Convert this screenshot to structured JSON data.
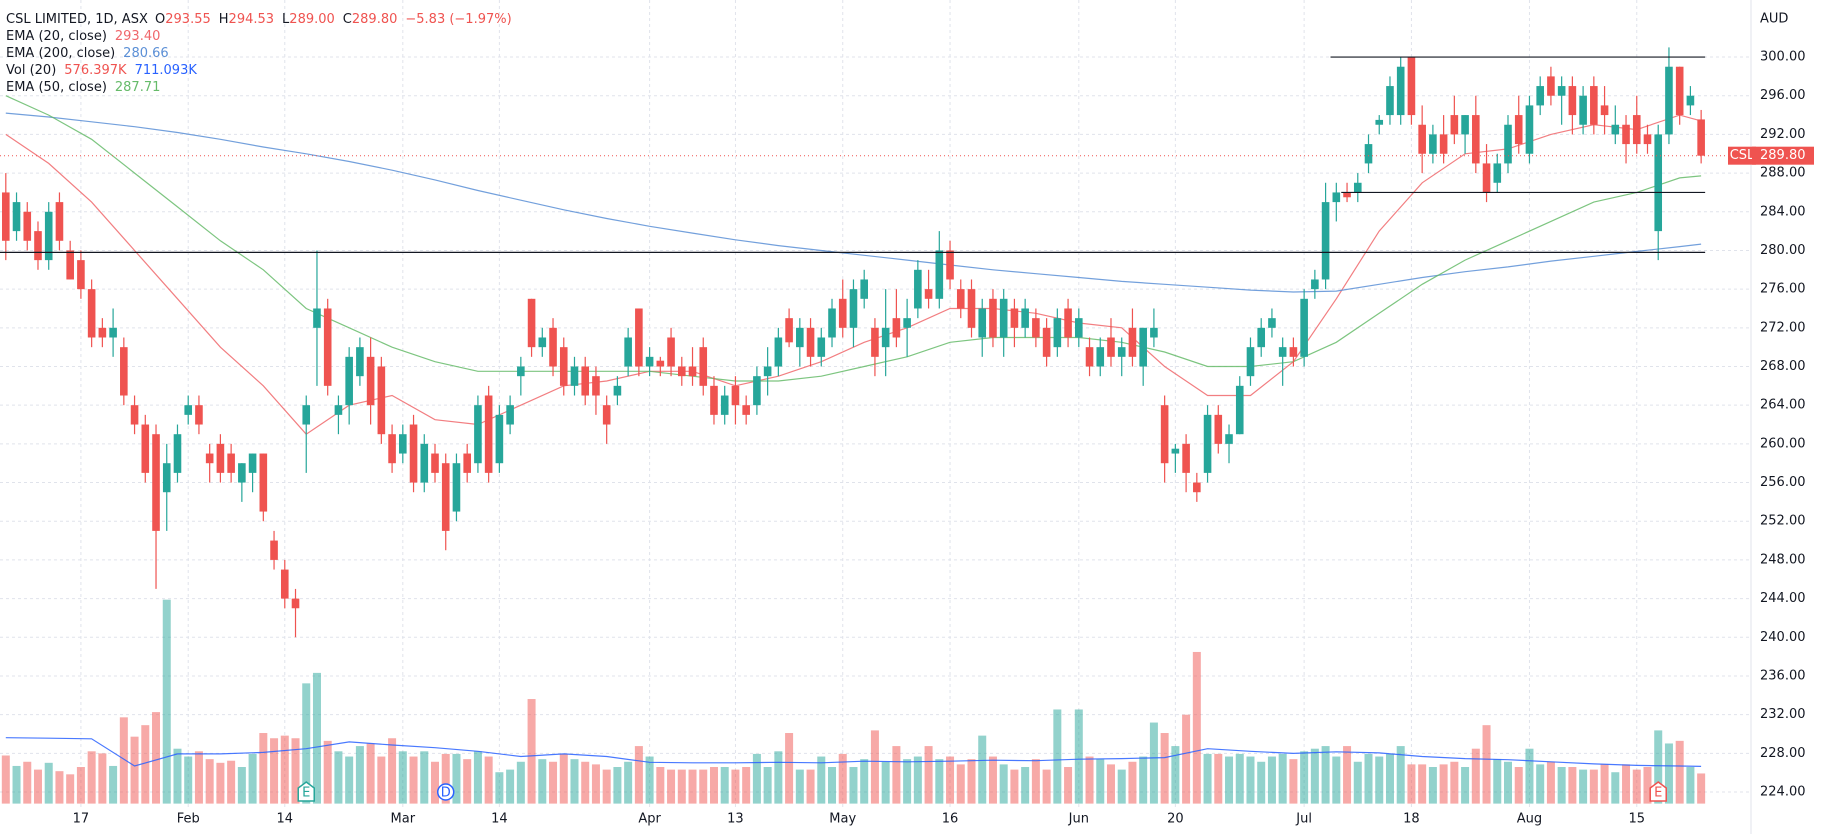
{
  "chart_data": {
    "type": "candlestick",
    "header": {
      "symbol": "CSL LIMITED, 1D, ASX",
      "fields": [
        {
          "key": "O",
          "value": "293.55"
        },
        {
          "key": "H",
          "value": "294.53"
        },
        {
          "key": "L",
          "value": "289.00"
        },
        {
          "key": "C",
          "value": "289.80"
        }
      ],
      "change": "−5.83 (−1.97%)"
    },
    "currency": "AUD",
    "last_tag": {
      "symbol": "CSL",
      "price": "289.80"
    },
    "volume_label": "576.397K",
    "colors": {
      "up": "#26a69a",
      "down": "#ef5350"
    },
    "categories": [
      null,
      null,
      null,
      null,
      null,
      null,
      null,
      "17",
      null,
      null,
      null,
      null,
      null,
      null,
      null,
      null,
      null,
      "Feb",
      null,
      null,
      null,
      null,
      null,
      null,
      null,
      null,
      "14",
      null,
      null,
      null,
      null,
      null,
      null,
      null,
      null,
      null,
      null,
      "Mar",
      null,
      null,
      null,
      null,
      null,
      null,
      null,
      null,
      "14",
      null,
      null,
      null,
      null,
      null,
      null,
      null,
      null,
      null,
      null,
      null,
      null,
      null,
      "Apr",
      null,
      null,
      null,
      null,
      null,
      null,
      null,
      "13",
      null,
      null,
      null,
      null,
      null,
      null,
      null,
      null,
      null,
      "May",
      null,
      null,
      null,
      null,
      null,
      null,
      null,
      null,
      null,
      "16",
      null,
      null,
      null,
      null,
      null,
      null,
      null,
      null,
      null,
      null,
      null,
      "Jun",
      null,
      null,
      null,
      null,
      null,
      null,
      null,
      null,
      "20",
      null,
      null,
      null,
      null,
      null,
      null,
      null,
      null,
      null,
      null,
      null,
      "Jul",
      null,
      null,
      null,
      null,
      null,
      null,
      null,
      null,
      null,
      "18",
      null,
      null,
      null,
      null,
      null,
      null,
      null,
      null,
      null,
      null,
      "Aug",
      null,
      null,
      null,
      null,
      null,
      null,
      null,
      null,
      null,
      "15",
      null,
      null,
      null,
      null,
      null,
      null
    ],
    "open": [
      286,
      282,
      284,
      282,
      279,
      285,
      280,
      279,
      276,
      272,
      271,
      270,
      264,
      262,
      261,
      255,
      257,
      263,
      264,
      259,
      260,
      259,
      256,
      257,
      259,
      250,
      247,
      244,
      262,
      272,
      274,
      263,
      264,
      267,
      269,
      268,
      261,
      259,
      262,
      256,
      259,
      258,
      253,
      259,
      258,
      265,
      258,
      262,
      267,
      275,
      270,
      272,
      270,
      266,
      268,
      267,
      264,
      265,
      268,
      274,
      268,
      268.6,
      271,
      268,
      268,
      270,
      266,
      263,
      266,
      264,
      264,
      267,
      268,
      273,
      270,
      272,
      269,
      271,
      275,
      272,
      275,
      272,
      270,
      273,
      272,
      274,
      276,
      275,
      280,
      276,
      276,
      271,
      275,
      271,
      274,
      272,
      273,
      272,
      270,
      274,
      271,
      270,
      268,
      271,
      269,
      272,
      268,
      271,
      264,
      259,
      260,
      256,
      257,
      263,
      260,
      261,
      267,
      270,
      272,
      269,
      270,
      269,
      276,
      277,
      285,
      286,
      286,
      289,
      293,
      294,
      294,
      300,
      293,
      290,
      292,
      294,
      292,
      294,
      289,
      287,
      289,
      294,
      290,
      295,
      298,
      296,
      297,
      293,
      297,
      295,
      292,
      293,
      294,
      292,
      282,
      292,
      299,
      295,
      293.55
    ],
    "high": [
      288,
      286,
      285,
      283,
      285,
      286,
      281,
      280,
      277,
      273,
      274,
      271,
      265,
      263,
      262,
      260,
      262,
      265,
      265,
      260,
      261,
      260,
      258,
      259,
      259,
      251,
      248,
      245,
      265,
      280,
      275,
      265,
      270,
      271,
      271,
      269,
      262,
      262,
      263,
      261,
      260,
      259,
      259,
      260,
      265,
      266,
      264,
      265,
      269,
      275,
      272,
      273,
      271,
      269,
      269,
      268,
      265,
      267,
      272,
      274,
      270,
      269,
      272,
      269,
      270,
      271,
      267,
      266,
      267,
      265,
      268,
      270,
      272,
      274,
      273,
      273,
      272,
      275,
      277,
      277,
      278,
      273,
      276,
      276,
      275,
      279,
      278,
      282,
      281,
      277,
      277,
      275,
      276,
      276,
      275,
      275,
      274,
      273,
      274,
      275,
      274,
      271,
      271,
      273,
      271,
      274,
      272,
      274,
      265,
      260,
      261,
      257,
      264,
      264,
      262,
      267,
      271,
      273,
      274,
      271,
      271,
      276,
      278,
      287,
      287,
      287,
      288,
      292,
      294,
      298,
      300,
      300,
      295,
      293,
      294,
      296,
      294,
      296,
      291,
      290,
      294,
      296,
      296,
      298,
      299,
      298,
      298,
      297,
      298,
      297,
      295,
      294,
      296,
      293,
      293,
      301,
      299,
      297,
      294.53
    ],
    "low": [
      279,
      281,
      280,
      278,
      278,
      280,
      277,
      275,
      270,
      270,
      269,
      264,
      261,
      256,
      245,
      251,
      256,
      262,
      261,
      256,
      256,
      256,
      254,
      255,
      252,
      247,
      243,
      240,
      257,
      266,
      265,
      261,
      262,
      266,
      262,
      260,
      257,
      258,
      255,
      255,
      256,
      249,
      252,
      256,
      257,
      256,
      257,
      261,
      265,
      269,
      269,
      267,
      265,
      265,
      264,
      263,
      260,
      264,
      267,
      267,
      267,
      267,
      267,
      266,
      266,
      265,
      262,
      262,
      262,
      262,
      263,
      265,
      267,
      270,
      268,
      268,
      268,
      270,
      271,
      270,
      274,
      267,
      267,
      270,
      269,
      273,
      274,
      274,
      276,
      273,
      271,
      269,
      270,
      269,
      270,
      271,
      270,
      268,
      269,
      270,
      270,
      267,
      267,
      268,
      267,
      268,
      266,
      270,
      256,
      257,
      255,
      254,
      256,
      259,
      258,
      261,
      266,
      269,
      271,
      266,
      268,
      268,
      275,
      276,
      283,
      285,
      285,
      288,
      292,
      293,
      293,
      293,
      288,
      289,
      289,
      291,
      290,
      288,
      285,
      286,
      288,
      290,
      289,
      294,
      295,
      293,
      292,
      292,
      292,
      292,
      291,
      289,
      290,
      290,
      279,
      291,
      293,
      294,
      289
    ],
    "close": [
      281,
      285,
      281,
      279,
      284,
      281,
      277,
      276,
      271,
      271,
      272,
      265,
      262,
      257,
      251,
      258,
      261,
      264,
      262,
      258,
      257,
      257,
      258,
      259,
      253,
      248,
      244,
      243,
      264,
      274,
      266,
      264,
      269,
      270,
      264,
      261,
      258,
      261,
      256,
      260,
      257,
      251,
      258,
      257,
      264,
      257,
      263,
      264,
      268,
      270,
      271,
      268,
      266,
      268,
      265,
      265,
      262,
      266,
      271,
      268,
      269,
      268,
      268,
      267,
      267,
      266,
      263,
      265,
      264,
      263,
      267,
      268,
      271,
      270.5,
      272,
      269,
      271,
      274,
      272,
      276,
      277,
      269,
      272,
      271,
      273,
      278,
      275,
      280,
      277,
      274,
      272,
      274,
      271,
      275,
      272,
      274,
      271,
      269,
      273,
      271,
      273,
      268,
      270,
      269,
      270,
      269,
      272,
      272,
      258,
      259.5,
      257,
      255,
      263,
      260,
      261,
      266,
      270,
      272,
      273,
      270,
      269,
      275,
      277,
      285,
      286,
      285.5,
      287,
      291,
      293.5,
      297,
      299,
      294,
      290,
      292,
      290,
      292,
      294,
      289,
      286,
      289,
      293,
      291,
      295,
      297,
      296,
      297,
      294,
      296,
      293,
      294,
      293,
      291,
      291,
      291,
      292,
      299,
      294,
      296,
      289.8
    ],
    "volume": [
      920000,
      720000,
      800000,
      650000,
      780000,
      620000,
      560000,
      700000,
      1000000,
      960000,
      720000,
      1650000,
      1280000,
      1500000,
      1750000,
      3900000,
      1050000,
      900000,
      1000000,
      850000,
      780000,
      820000,
      700000,
      950000,
      1350000,
      1250000,
      1300000,
      1250000,
      2300000,
      2500000,
      1200000,
      1000000,
      900000,
      1100000,
      1150000,
      900000,
      1250000,
      1000000,
      900000,
      1000000,
      800000,
      950000,
      950000,
      850000,
      1000000,
      900000,
      600000,
      650000,
      800000,
      2000000,
      850000,
      800000,
      950000,
      850000,
      800000,
      750000,
      650000,
      700000,
      800000,
      1100000,
      900000,
      700000,
      650000,
      650000,
      650000,
      650000,
      700000,
      700000,
      650000,
      700000,
      950000,
      700000,
      1000000,
      1350000,
      650000,
      650000,
      900000,
      700000,
      950000,
      700000,
      850000,
      1400000,
      800000,
      1100000,
      850000,
      900000,
      1100000,
      850000,
      900000,
      750000,
      850000,
      1300000,
      900000,
      750000,
      650000,
      700000,
      850000,
      650000,
      1800000,
      700000,
      1800000,
      900000,
      850000,
      750000,
      650000,
      800000,
      900000,
      1550000,
      1350000,
      1100000,
      1700000,
      2900000,
      950000,
      950000,
      900000,
      950000,
      900000,
      800000,
      900000,
      950000,
      850000,
      1000000,
      1050000,
      1100000,
      900000,
      1100000,
      800000,
      950000,
      900000,
      950000,
      1100000,
      750000,
      750000,
      700000,
      750000,
      800000,
      700000,
      1050000,
      1500000,
      850000,
      800000,
      700000,
      1050000,
      750000,
      800000,
      700000,
      700000,
      650000,
      650000,
      750000,
      600000,
      750000,
      650000,
      700000,
      1400000,
      1150000,
      1200000,
      700000,
      576397
    ],
    "lines": [
      {
        "name": "EMA (20, close)",
        "label": "293.40",
        "color": "#f0676b",
        "x": [
          0,
          4,
          8,
          12,
          16,
          20,
          24,
          28,
          32,
          36,
          40,
          44,
          48,
          52,
          56,
          60,
          64,
          68,
          72,
          76,
          80,
          84,
          88,
          92,
          96,
          100,
          104,
          108,
          112,
          116,
          120,
          124,
          128,
          132,
          136,
          140,
          144,
          148,
          152,
          156,
          158
        ],
        "values": [
          292,
          289,
          285,
          280,
          275,
          270,
          266,
          261,
          264,
          265,
          262.5,
          262,
          264,
          266,
          266.5,
          267.5,
          267.5,
          266,
          267,
          268.5,
          270.5,
          272,
          274,
          274,
          273.5,
          272.5,
          272,
          268,
          265,
          265,
          268.5,
          275,
          282,
          287,
          290,
          290.5,
          292,
          293,
          292.5,
          294,
          293.4
        ]
      },
      {
        "name": "EMA (200, close)",
        "label": "280.66",
        "color": "#5b8fd6",
        "x": [
          0,
          4,
          8,
          12,
          16,
          20,
          24,
          28,
          32,
          36,
          40,
          44,
          48,
          52,
          56,
          60,
          64,
          68,
          72,
          76,
          80,
          84,
          88,
          92,
          96,
          100,
          104,
          108,
          112,
          116,
          120,
          124,
          128,
          132,
          136,
          140,
          144,
          148,
          152,
          156,
          158
        ],
        "values": [
          294.2,
          293.8,
          293.3,
          292.8,
          292.2,
          291.5,
          290.7,
          290,
          289.2,
          288.3,
          287.3,
          286.2,
          285.2,
          284.2,
          283.3,
          282.5,
          281.8,
          281.1,
          280.5,
          280,
          279.5,
          279,
          278.5,
          278,
          277.6,
          277.2,
          276.8,
          276.5,
          276.2,
          275.9,
          275.7,
          275.8,
          276.5,
          277.2,
          277.8,
          278.3,
          278.9,
          279.4,
          279.9,
          280.4,
          280.66
        ]
      },
      {
        "name": "Vol (20)",
        "label": "711.093K",
        "color": "#2962ff",
        "axis": "y2",
        "x": [
          0,
          4,
          8,
          12,
          16,
          20,
          24,
          28,
          32,
          36,
          40,
          44,
          48,
          52,
          56,
          60,
          64,
          68,
          72,
          76,
          80,
          84,
          88,
          92,
          96,
          100,
          104,
          108,
          112,
          116,
          120,
          124,
          128,
          132,
          136,
          140,
          144,
          148,
          152,
          156,
          158
        ],
        "values": [
          1260000,
          1250000,
          1240000,
          720000,
          950000,
          950000,
          980000,
          1050000,
          1180000,
          1120000,
          1070000,
          1000000,
          900000,
          950000,
          900000,
          790000,
          780000,
          780000,
          790000,
          780000,
          810000,
          800000,
          810000,
          830000,
          820000,
          850000,
          860000,
          880000,
          1050000,
          1000000,
          960000,
          990000,
          970000,
          900000,
          860000,
          840000,
          800000,
          760000,
          730000,
          720000,
          711093
        ]
      },
      {
        "name": "EMA (50, close)",
        "label": "287.71",
        "color": "#66bb6a",
        "x": [
          0,
          4,
          8,
          12,
          16,
          20,
          24,
          28,
          32,
          36,
          40,
          44,
          48,
          52,
          56,
          60,
          64,
          68,
          72,
          76,
          80,
          84,
          88,
          92,
          96,
          100,
          104,
          108,
          112,
          116,
          120,
          124,
          128,
          132,
          136,
          140,
          144,
          148,
          152,
          156,
          158
        ],
        "values": [
          296,
          294,
          291.5,
          288,
          284.5,
          281,
          278,
          274,
          272,
          270,
          268.5,
          267.5,
          267.5,
          267.5,
          267.5,
          267.5,
          267,
          266.5,
          266.5,
          267,
          268,
          269,
          270.5,
          271,
          271,
          271,
          270.5,
          269.5,
          268,
          268,
          268.5,
          270.5,
          273.5,
          276.5,
          279,
          281,
          283,
          285,
          286,
          287.5,
          287.71
        ]
      }
    ],
    "hlines": [
      {
        "value": 300,
        "from": 124
      },
      {
        "value": 286,
        "from": 125
      },
      {
        "value": 279.8,
        "from": 0
      }
    ],
    "events": [
      {
        "index": 28,
        "label": "E",
        "color": "#26a69a"
      },
      {
        "index": 41,
        "label": "D",
        "color": "#2962ff"
      },
      {
        "index": 154,
        "label": "E",
        "color": "#ef5350"
      }
    ],
    "ylim": [
      222.8,
      305.9
    ],
    "yticks": [
      {
        "value": 224,
        "label": "224.00"
      },
      {
        "value": 228,
        "label": "228.00"
      },
      {
        "value": 232,
        "label": "232.00"
      },
      {
        "value": 236,
        "label": "236.00"
      },
      {
        "value": 240,
        "label": "240.00"
      },
      {
        "value": 244,
        "label": "244.00"
      },
      {
        "value": 248,
        "label": "248.00"
      },
      {
        "value": 252,
        "label": "252.00"
      },
      {
        "value": 256,
        "label": "256.00"
      },
      {
        "value": 260,
        "label": "260.00"
      },
      {
        "value": 264,
        "label": "264.00"
      },
      {
        "value": 268,
        "label": "268.00"
      },
      {
        "value": 272,
        "label": "272.00"
      },
      {
        "value": 276,
        "label": "276.00"
      },
      {
        "value": 280,
        "label": "280.00"
      },
      {
        "value": 284,
        "label": "284.00"
      },
      {
        "value": 288,
        "label": "288.00"
      },
      {
        "value": 292,
        "label": "292.00"
      },
      {
        "value": 296,
        "label": "296.00"
      },
      {
        "value": 300,
        "label": "300.00"
      }
    ],
    "y2lim": [
      0,
      4200000
    ],
    "grid": true
  }
}
